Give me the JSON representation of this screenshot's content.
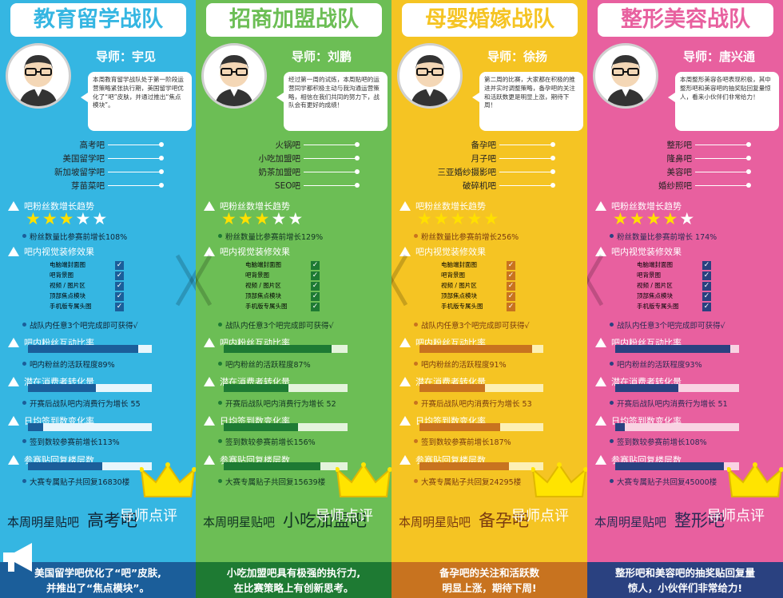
{
  "teams": [
    {
      "title": "教育留学战队",
      "mentor": "导师：宇见",
      "intro": "本周教育留学战队处于第一阶段运营策略紧张执行期，美国留学吧优化了“吧”皮肤，并通过推出“焦点模块”。",
      "bars": [
        "高考吧",
        "美国留学吧",
        "新加坡留学吧",
        "芽苗菜吧"
      ],
      "h_fans": "吧粉丝数增长趋势",
      "stars": 3,
      "n_fans": "粉丝数量比参赛前增长108%",
      "h_decor": "吧内视觉装修效果",
      "checklist": [
        "电脑端封面图",
        "吧背景图",
        "视频 / 图片区",
        "顶部焦点模块",
        "手机版专属头图"
      ],
      "n_decor": "战队内任意3个吧完成即可获得√",
      "h_interact": "吧内粉丝互动比率",
      "interact_pct": 89,
      "n_interact": "吧内粉丝的活跃程度89%",
      "h_consume": "潜在消费者转化量",
      "consume_pct": 55,
      "n_consume": "开赛后战队吧内消费行为增长 55",
      "h_checkin": "日均签到数变化率",
      "checkin_pct": 12,
      "n_checkin": "签到数较参赛前增长113%",
      "h_replies": "参赛贴回复楼层数",
      "replies_pct": 60,
      "n_replies": "大赛专属贴子共回复16830楼",
      "star_label": "本周明星贴吧",
      "star_bar": "高考吧",
      "review_title": "导师点评",
      "footer": [
        "美国留学吧优化了“吧”皮肤,",
        "并推出了“焦点模块”。"
      ],
      "color": "#35b6e2",
      "dark": "#1b5e9a",
      "light": "#e8f6fc",
      "text_dark": "#123"
    },
    {
      "title": "招商加盟战队",
      "mentor": "导师：刘鹏",
      "intro": "经过第一周的试炼，本周贴吧的运营同学都积极主动与我沟通运营策略，相信在我们共同的努力下，战队会有更好的成绩！",
      "bars": [
        "火锅吧",
        "小吃加盟吧",
        "奶茶加盟吧",
        "SEO吧"
      ],
      "h_fans": "吧粉丝数增长趋势",
      "stars": 3,
      "n_fans": "粉丝数量比参赛前增长129%",
      "h_decor": "吧内视觉装修效果",
      "checklist": [
        "电脑端封面图",
        "吧背景图",
        "视频 / 图片区",
        "顶部焦点模块",
        "手机版专属头图"
      ],
      "n_decor": "战队内任意3个吧完成即可获得√",
      "h_interact": "吧内粉丝互动比率",
      "interact_pct": 87,
      "n_interact": "吧内粉丝的活跃程度87%",
      "h_consume": "潜在消费者转化量",
      "consume_pct": 52,
      "n_consume": "开赛后战队吧内消费行为增长 52",
      "h_checkin": "日均签到数变化率",
      "checkin_pct": 60,
      "n_checkin": "签到数较参赛前增长156%",
      "h_replies": "参赛贴回复楼层数",
      "replies_pct": 78,
      "n_replies": "大赛专属贴子共回复15639楼",
      "star_label": "本周明星贴吧",
      "star_bar": "小吃加盟吧",
      "review_title": "导师点评",
      "footer": [
        "小吃加盟吧具有极强的执行力,",
        "在比赛策略上有创新思考。"
      ],
      "color": "#6cbe55",
      "dark": "#1e7a33",
      "light": "#e4f4dc",
      "text_dark": "#132"
    },
    {
      "title": "母婴婚嫁战队",
      "mentor": "导师：徐扬",
      "intro": "第二周的比赛，大家都在积极的推进并实时调整策略，备孕吧的关注和活跃数更是明显上涨，期待下周！",
      "bars": [
        "备孕吧",
        "月子吧",
        "三亚婚纱摄影吧",
        "破碎机吧"
      ],
      "h_fans": "吧粉丝数增长趋势",
      "stars": 5,
      "n_fans": "粉丝数量比参赛前增长256%",
      "h_decor": "吧内视觉装修效果",
      "checklist": [
        "电脑端封面图",
        "吧背景图",
        "视频 / 图片区",
        "顶部焦点模块",
        "手机版专属头图"
      ],
      "n_decor": "战队内任意3个吧完成即可获得√",
      "h_interact": "吧内粉丝互动比率",
      "interact_pct": 91,
      "n_interact": "吧内粉丝的活跃程度91%",
      "h_consume": "潜在消费者转化量",
      "consume_pct": 53,
      "n_consume": "开赛后战队吧内消费行为增长 53",
      "h_checkin": "日均签到数变化率",
      "checkin_pct": 65,
      "n_checkin": "签到数较参赛前增长187%",
      "h_replies": "参赛贴回复楼层数",
      "replies_pct": 72,
      "n_replies": "大赛专属贴子共回复24295楼",
      "star_label": "本周明星贴吧",
      "star_bar": "备孕吧",
      "review_title": "导师点评",
      "footer": [
        "备孕吧的关注和活跃数",
        "明显上涨，期待下周!"
      ],
      "color": "#f5c423",
      "dark": "#c8731f",
      "light": "#fdf0b4",
      "text_dark": "#7a3a10"
    },
    {
      "title": "整形美容战队",
      "mentor": "导师：唐兴通",
      "intro": "本周整形美容各吧表现积极，其中整形吧和美容吧的抽奖贴回复量惊人，看来小伙伴们非常给力！",
      "bars": [
        "整形吧",
        "隆鼻吧",
        "美容吧",
        "婚纱照吧"
      ],
      "h_fans": "吧粉丝数增长趋势",
      "stars": 4,
      "n_fans": "粉丝数量比参赛前增长 174%",
      "h_decor": "吧内视觉装修效果",
      "checklist": [
        "电脑端封面图",
        "吧背景图",
        "视频 / 图片区",
        "顶部焦点模块",
        "手机版专属头图"
      ],
      "n_decor": "战队内任意3个吧完成即可获得√",
      "h_interact": "吧内粉丝互动比率",
      "interact_pct": 93,
      "n_interact": "吧内粉丝的活跃程度93%",
      "h_consume": "潜在消费者转化量",
      "consume_pct": 51,
      "n_consume": "开赛后战队吧内消费行为增长 51",
      "h_checkin": "日均签到数变化率",
      "checkin_pct": 8,
      "n_checkin": "签到数较参赛前增长108%",
      "h_replies": "参赛贴回复楼层数",
      "replies_pct": 88,
      "n_replies": "大赛专属贴子共回复45000楼",
      "star_label": "本周明星贴吧",
      "star_bar": "整形吧",
      "review_title": "导师点评",
      "footer": [
        "整形吧和美容吧的抽奖贴回复量",
        "惊人，小伙伴们非常给力!"
      ],
      "color": "#e8609f",
      "dark": "#2a4180",
      "light": "#f9d3e3",
      "text_dark": "#2a2a55"
    }
  ],
  "icons": [
    "avatar-icon",
    "crown-icon",
    "swords-icon",
    "megaphone-icon",
    "star-icon",
    "check-icon"
  ]
}
